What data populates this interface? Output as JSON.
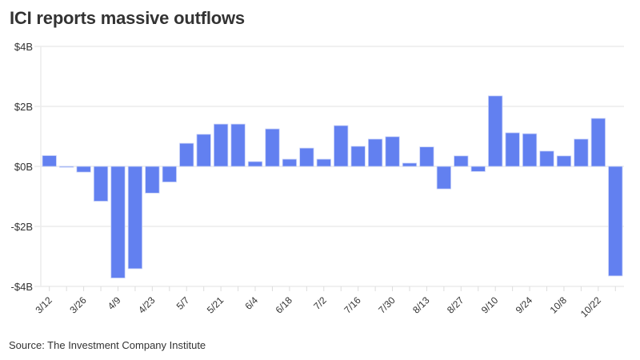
{
  "chart_data": {
    "type": "bar",
    "title": "ICI reports massive outflows",
    "xlabel": "",
    "ylabel": "",
    "ylim": [
      -4,
      4
    ],
    "y_unit": "billions USD",
    "yticks": [
      4,
      2,
      0,
      -2,
      -4
    ],
    "ytick_labels": [
      "$4B",
      "$2B",
      "$0B",
      "-$2B",
      "-$4B"
    ],
    "grid": true,
    "bar_color": "#6280f0",
    "categories": [
      "3/12",
      "3/19",
      "3/26",
      "4/2",
      "4/9",
      "4/16",
      "4/23",
      "4/30",
      "5/7",
      "5/14",
      "5/21",
      "5/28",
      "6/4",
      "6/11",
      "6/18",
      "6/25",
      "7/2",
      "7/9",
      "7/16",
      "7/23",
      "7/30",
      "8/6",
      "8/13",
      "8/20",
      "8/27",
      "9/3",
      "9/10",
      "9/17",
      "9/24",
      "10/1",
      "10/8",
      "10/15",
      "10/22",
      "10/29"
    ],
    "xtick_labels": [
      "3/12",
      "3/26",
      "4/9",
      "4/23",
      "5/7",
      "5/21",
      "6/4",
      "6/18",
      "7/2",
      "7/16",
      "7/30",
      "8/13",
      "8/27",
      "9/10",
      "9/24",
      "10/8",
      "10/22"
    ],
    "values": [
      0.36,
      -0.03,
      -0.19,
      -1.16,
      -3.72,
      -3.41,
      -0.89,
      -0.52,
      0.77,
      1.07,
      1.41,
      1.41,
      0.16,
      1.25,
      0.24,
      0.61,
      0.24,
      1.36,
      0.67,
      0.91,
      0.99,
      0.11,
      0.65,
      -0.75,
      0.35,
      -0.17,
      2.35,
      1.12,
      1.09,
      0.51,
      0.35,
      0.91,
      1.6,
      -3.65
    ]
  },
  "footer": {
    "source": "Source: The Investment Company Institute"
  }
}
